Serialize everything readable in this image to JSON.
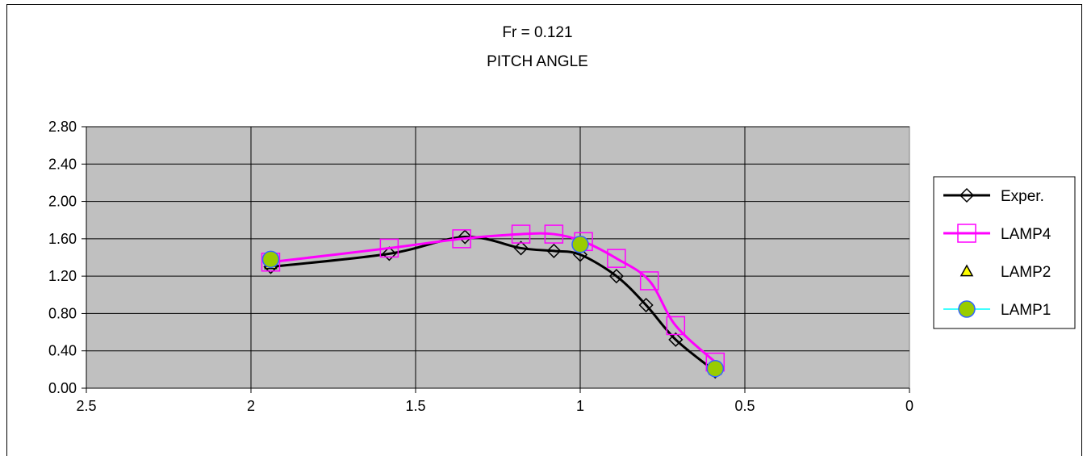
{
  "chart_data": {
    "type": "line",
    "title": "Fr = 0.121",
    "subtitle": "PITCH ANGLE",
    "xlabel": "",
    "ylabel": "",
    "xlim": [
      2.5,
      0
    ],
    "x_reversed": true,
    "x_ticks": [
      "2.5",
      "2",
      "1.5",
      "1",
      "0.5",
      "0"
    ],
    "ylim": [
      0,
      2.8
    ],
    "y_ticks": [
      "0.00",
      "0.40",
      "0.80",
      "1.20",
      "1.60",
      "2.00",
      "2.40",
      "2.80"
    ],
    "grid": true,
    "plot_background": "#c0c0c0",
    "legend_position": "right",
    "series": [
      {
        "name": "Exper.",
        "color": "#000000",
        "marker": "diamond",
        "line": true,
        "points": [
          [
            1.94,
            1.3
          ],
          [
            1.58,
            1.44
          ],
          [
            1.35,
            1.62
          ],
          [
            1.18,
            1.5
          ],
          [
            1.08,
            1.47
          ],
          [
            1.0,
            1.43
          ],
          [
            0.89,
            1.2
          ],
          [
            0.8,
            0.89
          ],
          [
            0.71,
            0.52
          ],
          [
            0.59,
            0.18
          ]
        ]
      },
      {
        "name": "LAMP4",
        "color": "#ff00ff",
        "marker": "square",
        "line": true,
        "points": [
          [
            1.94,
            1.35
          ],
          [
            1.58,
            1.5
          ],
          [
            1.36,
            1.6
          ],
          [
            1.18,
            1.65
          ],
          [
            1.08,
            1.65
          ],
          [
            0.99,
            1.57
          ],
          [
            0.89,
            1.39
          ],
          [
            0.79,
            1.15
          ],
          [
            0.71,
            0.67
          ],
          [
            0.59,
            0.28
          ]
        ]
      },
      {
        "name": "LAMP2",
        "color": "#ffff00",
        "marker": "triangle",
        "line": false,
        "points": [
          [
            1.94,
            1.33
          ],
          [
            1.0,
            1.55
          ],
          [
            0.59,
            0.2
          ]
        ]
      },
      {
        "name": "LAMP1",
        "color": "#99cc00",
        "edge_color": "#3366ff",
        "legend_line_color": "#00ffff",
        "marker": "circle",
        "line": false,
        "points": [
          [
            1.94,
            1.38
          ],
          [
            1.0,
            1.54
          ],
          [
            0.59,
            0.21
          ]
        ]
      }
    ]
  }
}
